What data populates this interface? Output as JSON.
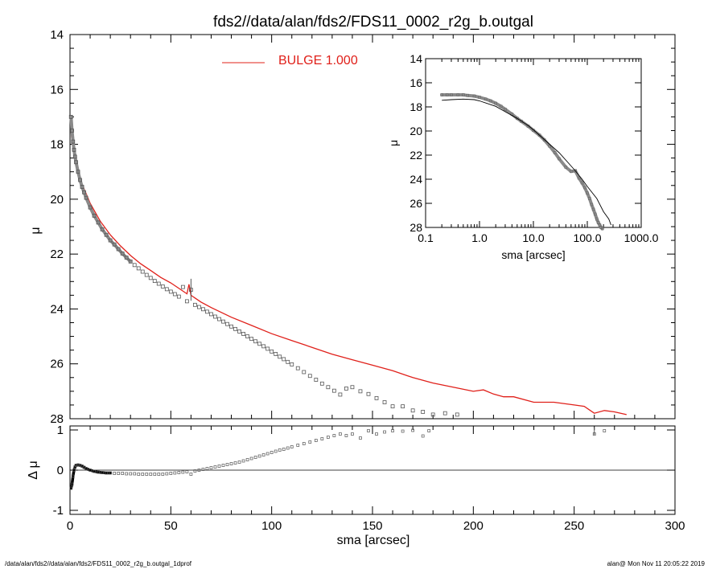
{
  "chart_data": [
    {
      "id": "main",
      "type": "scatter",
      "title": "fds2//data/alan/fds2/FDS11_0002_r2g_b.outgal",
      "xlabel": "",
      "ylabel": "μ",
      "xlim": [
        0,
        300
      ],
      "ylim": [
        28,
        14
      ],
      "y_inverted": true,
      "x_ticks": [
        0,
        50,
        100,
        150,
        200,
        250,
        300
      ],
      "y_ticks": [
        14,
        16,
        18,
        20,
        22,
        24,
        26,
        28
      ],
      "y_tick_labels": [
        "14",
        "16",
        "18",
        "20",
        "22",
        "24",
        "26",
        "28"
      ],
      "legend": {
        "label": "BULGE  1.000",
        "color": "#e0201a",
        "placement": "top-center"
      },
      "series": [
        {
          "name": "data",
          "marker": "square",
          "color": "#808080",
          "x": [
            0.5,
            1,
            1.5,
            2,
            2.5,
            3,
            4,
            5,
            6,
            7,
            8,
            10,
            12,
            14,
            16,
            18,
            20,
            22,
            24,
            26,
            28,
            30,
            32,
            34,
            36,
            38,
            40,
            42,
            44,
            46,
            48,
            50,
            52,
            54,
            56,
            58,
            60,
            62,
            64,
            66,
            68,
            70,
            72,
            74,
            76,
            78,
            80,
            82,
            84,
            86,
            88,
            90,
            92,
            94,
            96,
            98,
            100,
            102,
            104,
            106,
            108,
            110,
            113,
            116,
            119,
            122,
            125,
            128,
            131,
            134,
            137,
            140,
            144,
            148,
            152,
            156,
            160,
            165,
            170,
            175,
            180,
            186,
            192
          ],
          "y": [
            17.0,
            17.5,
            17.9,
            18.2,
            18.45,
            18.65,
            19.0,
            19.3,
            19.55,
            19.75,
            19.95,
            20.3,
            20.6,
            20.85,
            21.1,
            21.3,
            21.5,
            21.65,
            21.82,
            21.98,
            22.13,
            22.27,
            22.4,
            22.52,
            22.64,
            22.76,
            22.87,
            22.98,
            23.08,
            23.18,
            23.28,
            23.37,
            23.46,
            23.55,
            23.2,
            23.72,
            23.3,
            23.85,
            23.93,
            24.01,
            24.1,
            24.19,
            24.28,
            24.37,
            24.46,
            24.55,
            24.64,
            24.73,
            24.82,
            24.91,
            25.0,
            25.09,
            25.18,
            25.27,
            25.36,
            25.45,
            25.55,
            25.64,
            25.74,
            25.83,
            25.93,
            26.02,
            26.16,
            26.3,
            26.44,
            26.58,
            26.72,
            26.85,
            26.98,
            27.12,
            26.9,
            26.85,
            27.0,
            27.1,
            27.25,
            27.4,
            27.55,
            27.55,
            27.7,
            27.75,
            27.85,
            27.8,
            27.85
          ]
        },
        {
          "name": "BULGE  1.000",
          "marker": "line",
          "color": "#e0201a",
          "x": [
            0.5,
            1,
            2,
            3,
            4,
            6,
            8,
            10,
            15,
            20,
            25,
            30,
            35,
            40,
            45,
            50,
            55,
            58,
            59,
            60,
            61,
            62,
            65,
            70,
            80,
            90,
            100,
            110,
            120,
            130,
            140,
            150,
            160,
            170,
            180,
            190,
            200,
            205,
            210,
            215,
            220,
            230,
            240,
            250,
            255,
            260,
            265,
            270,
            276
          ],
          "y": [
            17.5,
            17.9,
            18.35,
            18.65,
            18.95,
            19.45,
            19.8,
            20.15,
            20.8,
            21.3,
            21.7,
            22.05,
            22.35,
            22.6,
            22.85,
            23.05,
            23.3,
            23.45,
            23.1,
            23.5,
            23.55,
            23.6,
            23.75,
            23.95,
            24.3,
            24.6,
            24.9,
            25.15,
            25.4,
            25.65,
            25.85,
            26.05,
            26.25,
            26.5,
            26.7,
            26.85,
            27.0,
            26.95,
            27.1,
            27.2,
            27.2,
            27.4,
            27.4,
            27.5,
            27.55,
            27.8,
            27.7,
            27.75,
            27.85
          ]
        }
      ]
    },
    {
      "id": "residual",
      "type": "scatter",
      "title": "",
      "xlabel": "sma [arcsec]",
      "ylabel": "Δ μ",
      "xlim": [
        0,
        300
      ],
      "ylim": [
        -1.1,
        1.1
      ],
      "x_ticks": [
        0,
        50,
        100,
        150,
        200,
        250,
        300
      ],
      "y_ticks": [
        -1,
        0,
        1
      ],
      "y_tick_labels": [
        "-1",
        "0",
        "1"
      ],
      "zero_line": true,
      "series": [
        {
          "name": "residual",
          "marker": "square",
          "color": "#808080",
          "x": [
            0.5,
            1,
            1.5,
            2,
            2.5,
            3,
            4,
            5,
            6,
            7,
            8,
            10,
            12,
            14,
            16,
            18,
            20,
            22,
            24,
            26,
            28,
            30,
            32,
            34,
            36,
            38,
            40,
            42,
            44,
            46,
            48,
            50,
            52,
            54,
            56,
            58,
            60,
            62,
            64,
            66,
            68,
            70,
            72,
            74,
            76,
            78,
            80,
            82,
            84,
            86,
            88,
            90,
            92,
            94,
            96,
            98,
            100,
            102,
            104,
            106,
            108,
            110,
            113,
            116,
            119,
            122,
            125,
            128,
            131,
            134,
            137,
            140,
            144,
            148,
            152,
            156,
            160,
            165,
            170,
            175,
            178,
            260,
            265
          ],
          "y": [
            -0.45,
            -0.35,
            -0.15,
            0.0,
            0.08,
            0.12,
            0.13,
            0.12,
            0.1,
            0.07,
            0.04,
            0.0,
            -0.03,
            -0.05,
            -0.06,
            -0.07,
            -0.07,
            -0.08,
            -0.08,
            -0.08,
            -0.09,
            -0.09,
            -0.09,
            -0.1,
            -0.1,
            -0.1,
            -0.1,
            -0.1,
            -0.1,
            -0.1,
            -0.09,
            -0.08,
            -0.07,
            -0.06,
            -0.05,
            -0.04,
            -0.1,
            -0.02,
            0.0,
            0.02,
            0.04,
            0.06,
            0.08,
            0.1,
            0.12,
            0.14,
            0.16,
            0.18,
            0.2,
            0.23,
            0.26,
            0.29,
            0.32,
            0.35,
            0.38,
            0.41,
            0.44,
            0.47,
            0.5,
            0.52,
            0.55,
            0.58,
            0.62,
            0.66,
            0.7,
            0.74,
            0.78,
            0.82,
            0.86,
            0.9,
            0.86,
            0.9,
            0.8,
            0.98,
            0.9,
            0.95,
            0.98,
            0.97,
            0.99,
            0.85,
            0.98,
            0.9,
            0.98
          ]
        }
      ]
    },
    {
      "id": "inset",
      "type": "scatter",
      "title": "",
      "xlabel": "sma [arcsec]",
      "ylabel": "μ",
      "x_scale": "log",
      "xlim": [
        0.1,
        1000
      ],
      "ylim": [
        28,
        14
      ],
      "y_inverted": true,
      "x_ticks": [
        0.1,
        1,
        10,
        100,
        1000
      ],
      "x_tick_labels": [
        "0.1",
        "1.0",
        "10.0",
        "100.0",
        "1000.0"
      ],
      "y_ticks": [
        14,
        16,
        18,
        20,
        22,
        24,
        26,
        28
      ],
      "y_tick_labels": [
        "14",
        "16",
        "18",
        "20",
        "22",
        "24",
        "26",
        "28"
      ],
      "series": [
        {
          "name": "data",
          "marker": "square",
          "color": "#808080",
          "x": [
            0.2,
            0.25,
            0.3,
            0.4,
            0.5,
            0.6,
            0.8,
            1,
            1.3,
            1.6,
            2,
            2.5,
            3,
            4,
            5,
            6,
            8,
            10,
            13,
            16,
            20,
            25,
            30,
            40,
            50,
            60,
            70,
            80,
            90,
            100,
            110,
            120,
            130,
            140,
            150,
            160,
            170,
            180,
            190
          ],
          "y": [
            17.0,
            17.0,
            17.0,
            17.0,
            17.0,
            17.05,
            17.1,
            17.2,
            17.35,
            17.5,
            17.7,
            17.95,
            18.2,
            18.6,
            18.95,
            19.2,
            19.6,
            19.95,
            20.35,
            20.75,
            21.25,
            21.8,
            22.3,
            23.0,
            23.35,
            23.3,
            23.9,
            24.3,
            24.7,
            25.15,
            25.6,
            26.1,
            26.5,
            26.9,
            27.3,
            27.6,
            27.8,
            28.0,
            28.1
          ]
        },
        {
          "name": "model",
          "marker": "line",
          "color": "#000000",
          "x": [
            0.2,
            0.3,
            0.5,
            0.8,
            1,
            2,
            3,
            5,
            8,
            10,
            20,
            30,
            50,
            60,
            80,
            100,
            150,
            200,
            250,
            276
          ],
          "y": [
            17.45,
            17.4,
            17.35,
            17.4,
            17.5,
            17.95,
            18.4,
            18.95,
            19.55,
            19.9,
            21.1,
            21.8,
            22.9,
            23.3,
            24.0,
            24.6,
            25.6,
            26.7,
            27.3,
            27.8
          ]
        }
      ]
    }
  ],
  "footer": {
    "left": "/data/alan/fds2//data/alan/fds2/FDS11_0002_r2g_b.outgal_1dprof",
    "right": "alan@  Mon Nov 11 20:05:22 2019"
  }
}
